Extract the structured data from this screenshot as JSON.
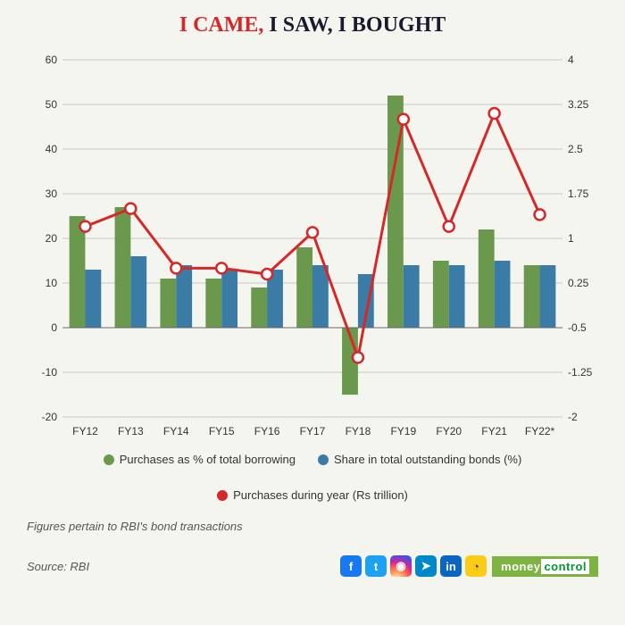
{
  "title": {
    "part1": "I CAME,",
    "part2": " I SAW, I BOUGHT",
    "fontsize": 24,
    "color1": "#d62828",
    "color2": "#1a1a2e"
  },
  "chart": {
    "type": "bar-line-dual-axis",
    "categories": [
      "FY12",
      "FY13",
      "FY14",
      "FY15",
      "FY16",
      "FY17",
      "FY18",
      "FY19",
      "FY20",
      "FY21",
      "FY22*"
    ],
    "left_axis": {
      "min": -20,
      "max": 60,
      "step": 10,
      "ticks": [
        -20,
        -10,
        0,
        10,
        20,
        30,
        40,
        50,
        60
      ]
    },
    "right_axis": {
      "min": -2,
      "max": 4,
      "step": 0.75,
      "ticks": [
        -2,
        -1.25,
        -0.5,
        0.25,
        1,
        1.75,
        2.5,
        3.25,
        4
      ]
    },
    "series": {
      "green_bars": {
        "label": "Purchases as % of total borrowing",
        "color": "#6a994e",
        "axis": "left",
        "values": [
          25,
          27,
          11,
          11,
          9,
          18,
          -15,
          52,
          15,
          22,
          14
        ]
      },
      "blue_bars": {
        "label": "Share in total outstanding bonds (%)",
        "color": "#3a7ca5",
        "axis": "left",
        "values": [
          13,
          16,
          14,
          13,
          13,
          14,
          12,
          14,
          14,
          15,
          14
        ]
      },
      "red_line": {
        "label": "Purchases during year (Rs trillion)",
        "color": "#d62828",
        "axis": "right",
        "values": [
          1.2,
          1.5,
          0.5,
          0.5,
          0.4,
          1.1,
          -1.0,
          3.0,
          1.2,
          3.1,
          1.4
        ],
        "line_width": 3,
        "marker": "circle",
        "marker_size": 6,
        "marker_fill": "#ffffff",
        "marker_stroke": "#d62828"
      }
    },
    "background_color": "#f5f5f0",
    "grid_color": "#999999",
    "axis_fontsize": 12,
    "bar_width": 0.35
  },
  "legend": {
    "items": [
      {
        "color": "#6a994e",
        "label": "Purchases as % of total borrowing"
      },
      {
        "color": "#3a7ca5",
        "label": "Share in total outstanding bonds (%)"
      },
      {
        "color": "#d62828",
        "label": "Purchases during year (Rs trillion)"
      }
    ],
    "fontsize": 13
  },
  "note": "Figures pertain to RBI's bond transactions",
  "source": "Source: RBI",
  "social": [
    {
      "name": "facebook",
      "bg": "#1877f2",
      "glyph": "f"
    },
    {
      "name": "twitter",
      "bg": "#1da1f2",
      "glyph": "t"
    },
    {
      "name": "instagram",
      "bg": "#e4405f",
      "glyph": "◉"
    },
    {
      "name": "telegram",
      "bg": "#0088cc",
      "glyph": "➤"
    },
    {
      "name": "linkedin",
      "bg": "#0a66c2",
      "glyph": "in"
    },
    {
      "name": "koo",
      "bg": "#facc15",
      "glyph": "◔"
    }
  ],
  "brand": {
    "part1": "money",
    "part2": "control"
  }
}
